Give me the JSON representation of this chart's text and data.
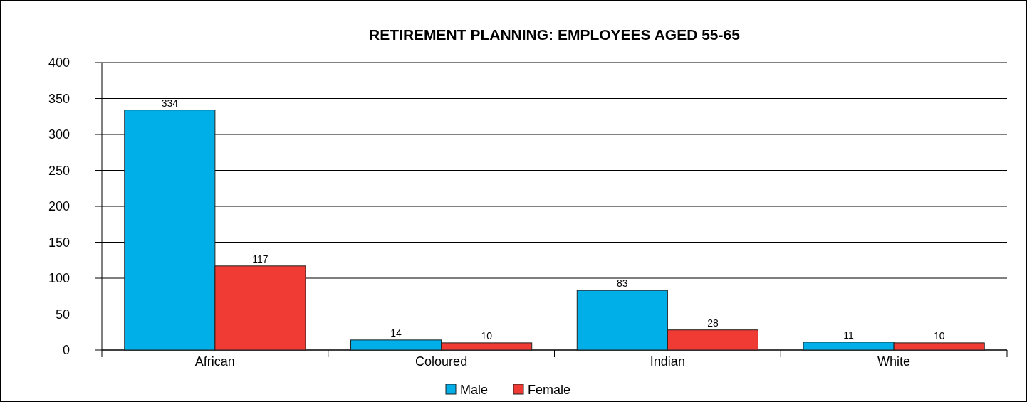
{
  "chart_data": {
    "type": "bar",
    "title": "RETIREMENT PLANNING: EMPLOYEES AGED 55-65",
    "categories": [
      "African",
      "Coloured",
      "Indian",
      "White"
    ],
    "series": [
      {
        "name": "Male",
        "color": "#00aee8",
        "values": [
          334,
          14,
          83,
          11
        ]
      },
      {
        "name": "Female",
        "color": "#ef3b33",
        "values": [
          117,
          10,
          28,
          10
        ]
      }
    ],
    "ylim": [
      0,
      400
    ],
    "yticks": [
      0,
      50,
      100,
      150,
      200,
      250,
      300,
      350,
      400
    ],
    "grid": "y",
    "legend": "bottom",
    "data_labels": true
  }
}
